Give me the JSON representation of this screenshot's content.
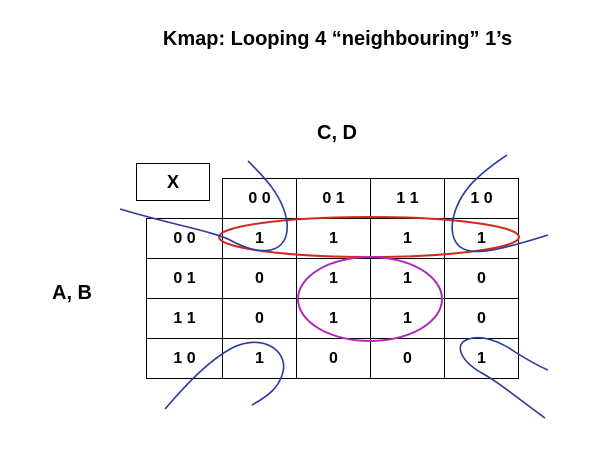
{
  "title": "Kmap: Looping 4 “neighbouring” 1’s",
  "col_var_label": "C, D",
  "row_var_label": "A, B",
  "corner_label": "X",
  "col_headers": [
    "0 0",
    "0 1",
    "1 1",
    "1 0"
  ],
  "row_headers": [
    "0 0",
    "0 1",
    "1 1",
    "1 0"
  ],
  "cells": [
    [
      "1",
      "1",
      "1",
      "1"
    ],
    [
      "0",
      "1",
      "1",
      "0"
    ],
    [
      "0",
      "1",
      "1",
      "0"
    ],
    [
      "1",
      "0",
      "0",
      "1"
    ]
  ],
  "colors": {
    "row_loop": "#d42a1e",
    "center_loop": "#b02ab8",
    "corner_loops": "#2b3a9c"
  }
}
